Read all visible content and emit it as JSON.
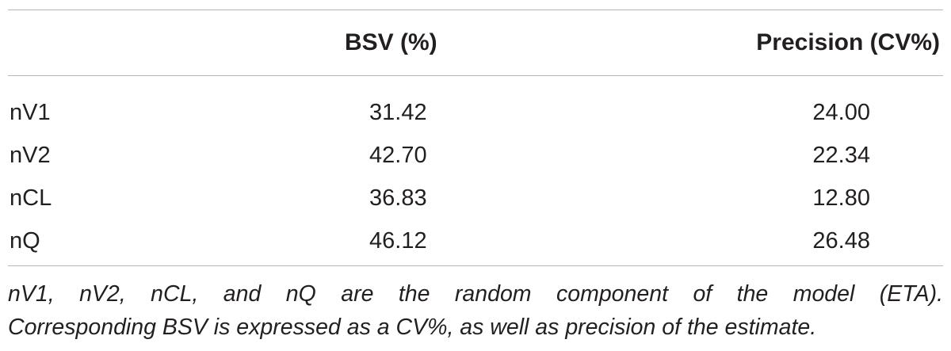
{
  "table": {
    "headers": {
      "row_label": "",
      "bsv": "BSV (%)",
      "precision": "Precision (CV%)"
    },
    "rows": [
      {
        "label": "nV1",
        "bsv": "31.42",
        "precision": "24.00"
      },
      {
        "label": "nV2",
        "bsv": "42.70",
        "precision": "22.34"
      },
      {
        "label": "nCL",
        "bsv": "36.83",
        "precision": "12.80"
      },
      {
        "label": "nQ",
        "bsv": "46.12",
        "precision": "26.48"
      }
    ]
  },
  "footnote": {
    "line1": "nV1, nV2, nCL, and nQ are the random component of the model (ETA).",
    "line2": "Corresponding BSV is expressed as a CV%, as well as precision of the estimate."
  }
}
